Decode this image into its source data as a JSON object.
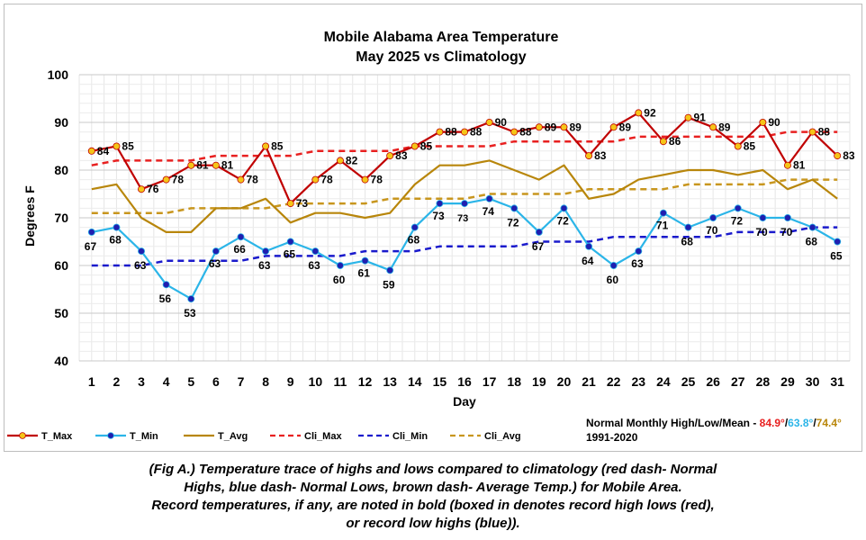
{
  "chart_data": {
    "type": "line",
    "title": "Mobile Alabama Area Temperature",
    "subtitle": "May 2025 vs Climatology",
    "xlabel": "Day",
    "ylabel": "Degrees F",
    "ylim": [
      40,
      100
    ],
    "yticks": [
      40,
      50,
      60,
      70,
      80,
      90,
      100
    ],
    "grid": true,
    "legend_position": "bottom",
    "x": [
      1,
      2,
      3,
      4,
      5,
      6,
      7,
      8,
      9,
      10,
      11,
      12,
      13,
      14,
      15,
      16,
      17,
      18,
      19,
      20,
      21,
      22,
      23,
      24,
      25,
      26,
      27,
      28,
      29,
      30,
      31
    ],
    "series": [
      {
        "name": "T_Max",
        "style": "solid-markers",
        "color": "#c00000",
        "marker_color": "#f5c518",
        "values": [
          84,
          85,
          76,
          78,
          81,
          81,
          78,
          85,
          73,
          78,
          82,
          78,
          83,
          85,
          88,
          88,
          90,
          88,
          89,
          89,
          83,
          89,
          92,
          86,
          91,
          89,
          85,
          90,
          81,
          88,
          83
        ]
      },
      {
        "name": "T_Min",
        "style": "solid-markers",
        "color": "#2bb5e8",
        "marker_color": "#1f1fb0",
        "values": [
          67,
          68,
          63,
          56,
          53,
          63,
          66,
          63,
          65,
          63,
          60,
          61,
          59,
          68,
          73,
          73,
          74,
          72,
          67,
          72,
          64,
          60,
          63,
          71,
          68,
          70,
          72,
          70,
          70,
          68,
          65
        ]
      },
      {
        "name": "T_Avg",
        "style": "solid",
        "color": "#b8860b",
        "values": [
          76,
          77,
          70,
          67,
          67,
          72,
          72,
          74,
          69,
          71,
          71,
          70,
          71,
          77,
          81,
          81,
          82,
          80,
          78,
          81,
          74,
          75,
          78,
          79,
          80,
          80,
          79,
          80,
          76,
          78,
          74
        ]
      },
      {
        "name": "Cli_Max",
        "style": "dashed",
        "color": "#e82020",
        "values": [
          81,
          82,
          82,
          82,
          82,
          83,
          83,
          83,
          83,
          84,
          84,
          84,
          84,
          85,
          85,
          85,
          85,
          86,
          86,
          86,
          86,
          86,
          87,
          87,
          87,
          87,
          87,
          87,
          88,
          88,
          88
        ]
      },
      {
        "name": "Cli_Min",
        "style": "dashed",
        "color": "#1a1acc",
        "values": [
          60,
          60,
          60,
          61,
          61,
          61,
          61,
          62,
          62,
          62,
          62,
          63,
          63,
          63,
          64,
          64,
          64,
          64,
          65,
          65,
          65,
          66,
          66,
          66,
          66,
          66,
          67,
          67,
          67,
          68,
          68
        ]
      },
      {
        "name": "Cli_Avg",
        "style": "dashed",
        "color": "#c8961e",
        "values": [
          71,
          71,
          71,
          71,
          72,
          72,
          72,
          72,
          73,
          73,
          73,
          73,
          74,
          74,
          74,
          74,
          75,
          75,
          75,
          75,
          76,
          76,
          76,
          76,
          77,
          77,
          77,
          77,
          78,
          78,
          78
        ]
      }
    ],
    "normals": {
      "label": "Normal Monthly High/Low/Mean -",
      "high": "84.9°",
      "low": "63.8°",
      "mean": "74.4°",
      "high_color": "#e82020",
      "low_color": "#2bb5e8",
      "mean_color": "#b8860b",
      "period": "1991-2020"
    }
  },
  "caption": {
    "line1": "(Fig A.) Temperature trace of highs and lows compared to climatology (red dash- Normal",
    "line2": "Highs, blue dash- Normal Lows, brown dash- Average Temp.) for Mobile Area.",
    "line3": "Record temperatures, if any, are noted in bold (boxed in denotes record high lows (red),",
    "line4": "or record low highs (blue))."
  }
}
